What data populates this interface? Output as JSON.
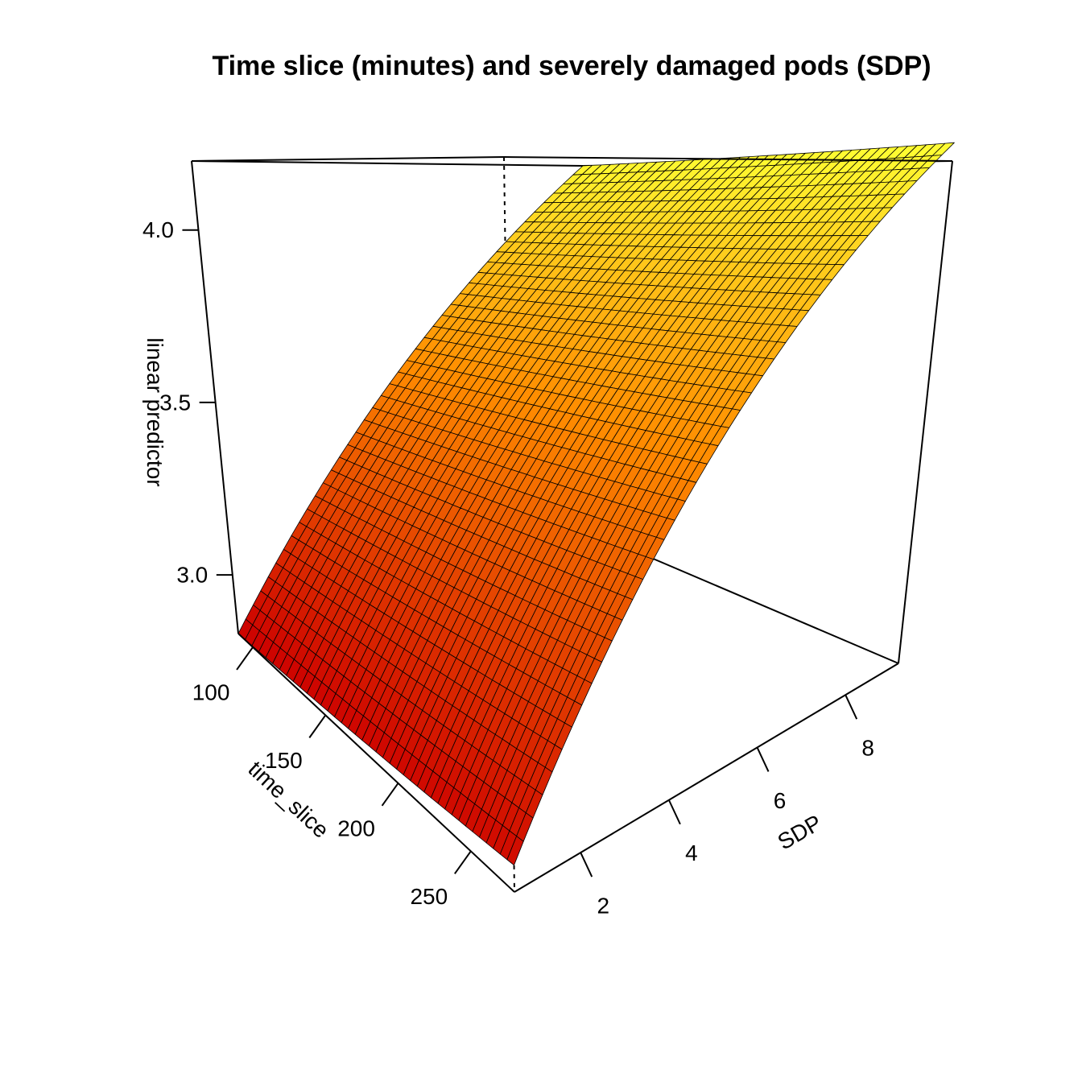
{
  "chart_data": {
    "type": "surface3d",
    "title": "Time slice (minutes) and severely damaged pods (SDP)",
    "xlabel": "time_slice",
    "ylabel": "SDP",
    "zlabel": "linear predictor",
    "xlim": [
      90,
      280
    ],
    "ylim": [
      0.5,
      9.2
    ],
    "zlim": [
      2.83,
      4.2
    ],
    "x_ticks": [
      100,
      150,
      200,
      250
    ],
    "y_ticks": [
      2,
      4,
      6,
      8
    ],
    "z_ticks": [
      "3.0",
      "3.5",
      "4.0"
    ],
    "grid_size": 40,
    "corner_values": {
      "xmin_ymin": 2.83,
      "xmax_ymin": 2.88,
      "xmin_ymax": 4.2,
      "xmax_ymax": 4.25
    },
    "colormap": "heat",
    "color_low": "#cc0000",
    "color_high": "#ffff33"
  }
}
